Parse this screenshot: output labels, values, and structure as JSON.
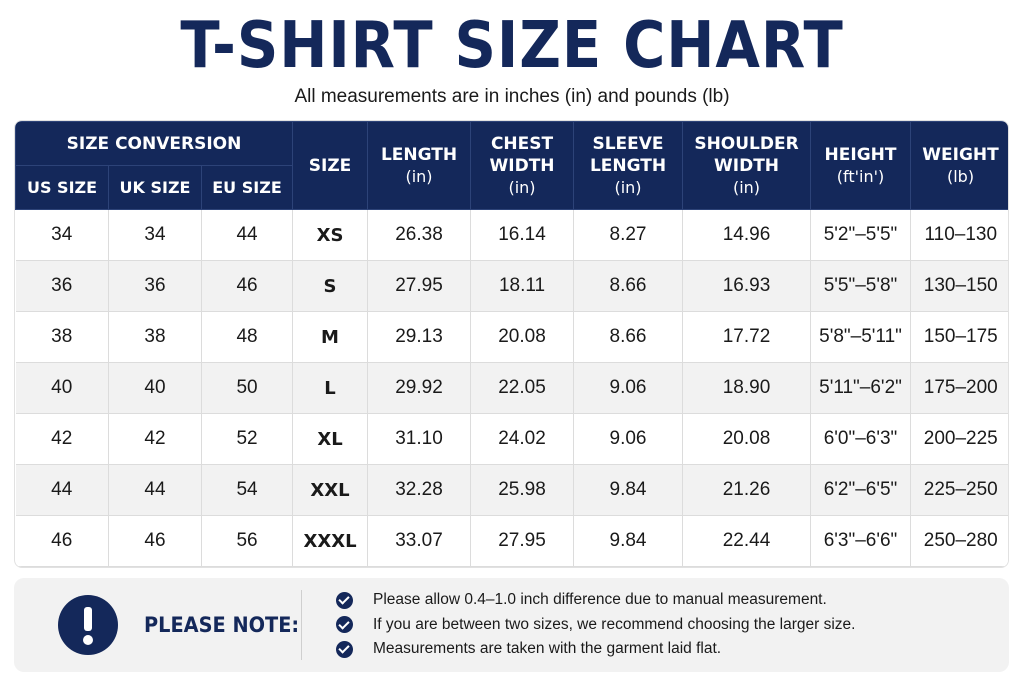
{
  "header": {
    "title": "T-SHIRT SIZE CHART",
    "subtitle": "All measurements are in inches (in) and pounds (lb)"
  },
  "table": {
    "group_header": "SIZE CONVERSION",
    "sub_headers": [
      "US SIZE",
      "UK SIZE",
      "EU SIZE"
    ],
    "columns": [
      {
        "label": "SIZE",
        "unit": ""
      },
      {
        "label": "LENGTH",
        "unit": "(in)"
      },
      {
        "label": "CHEST WIDTH",
        "unit": "(in)"
      },
      {
        "label": "SLEEVE LENGTH",
        "unit": "(in)"
      },
      {
        "label": "SHOULDER WIDTH",
        "unit": "(in)"
      },
      {
        "label": "HEIGHT",
        "unit": "(ft'in')"
      },
      {
        "label": "WEIGHT",
        "unit": "(lb)"
      }
    ],
    "rows": [
      [
        "34",
        "34",
        "44",
        "XS",
        "26.38",
        "16.14",
        "8.27",
        "14.96",
        "5'2\"–5'5\"",
        "110–130"
      ],
      [
        "36",
        "36",
        "46",
        "S",
        "27.95",
        "18.11",
        "8.66",
        "16.93",
        "5'5\"–5'8\"",
        "130–150"
      ],
      [
        "38",
        "38",
        "48",
        "M",
        "29.13",
        "20.08",
        "8.66",
        "17.72",
        "5'8\"–5'11\"",
        "150–175"
      ],
      [
        "40",
        "40",
        "50",
        "L",
        "29.92",
        "22.05",
        "9.06",
        "18.90",
        "5'11\"–6'2\"",
        "175–200"
      ],
      [
        "42",
        "42",
        "52",
        "XL",
        "31.10",
        "24.02",
        "9.06",
        "20.08",
        "6'0\"–6'3\"",
        "200–225"
      ],
      [
        "44",
        "44",
        "54",
        "XXL",
        "32.28",
        "25.98",
        "9.84",
        "21.26",
        "6'2\"–6'5\"",
        "225–250"
      ],
      [
        "46",
        "46",
        "56",
        "XXXL",
        "33.07",
        "27.95",
        "9.84",
        "22.44",
        "6'3\"–6'6\"",
        "250–280"
      ]
    ]
  },
  "note": {
    "icon": "exclamation-icon",
    "label": "PLEASE NOTE:",
    "items": [
      "Please allow 0.4–1.0 inch difference due to manual measurement.",
      "If you are between two sizes, we recommend choosing the larger size.",
      "Measurements are taken with the garment laid flat."
    ]
  },
  "colors": {
    "navy": "#14285a",
    "row_alt": "#f2f2f2"
  }
}
